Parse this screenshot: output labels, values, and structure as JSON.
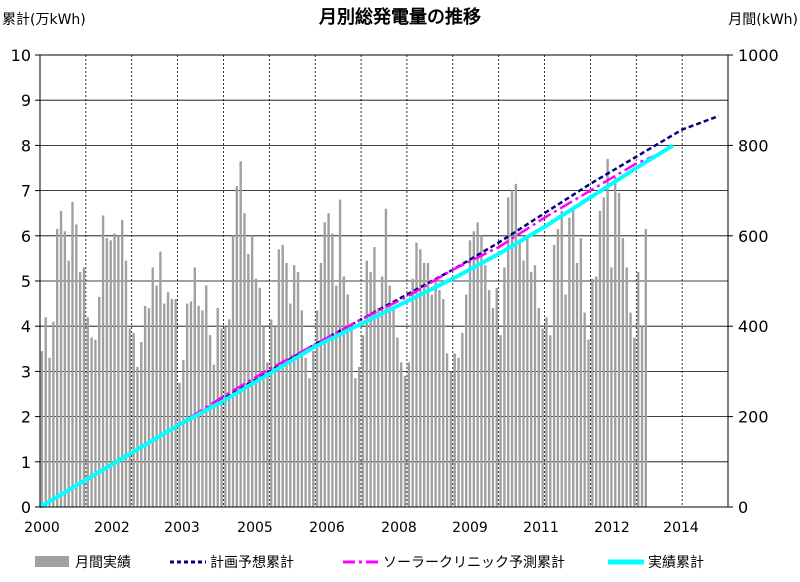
{
  "chart_data": {
    "type": "bar+line",
    "title": "月別総発電量の推移",
    "y_left_label": "累計(万kWh)",
    "y_right_label": "月間(kWh)",
    "ylim_left": [
      0,
      10
    ],
    "ylim_right": [
      0,
      1000
    ],
    "y_left_ticks": [
      "0",
      "1",
      "2",
      "3",
      "4",
      "5",
      "6",
      "7",
      "8",
      "9",
      "10"
    ],
    "y_right_ticks": [
      "0",
      "200",
      "400",
      "600",
      "800",
      "1000"
    ],
    "x_tick_labels": [
      "2000",
      "2002",
      "2003",
      "2005",
      "2006",
      "2008",
      "2009",
      "2011",
      "2012",
      "2014"
    ],
    "grid": true,
    "legend_position": "bottom",
    "legend": {
      "bar": "月間実績",
      "plan": "計画予想累計",
      "clinic": "ソーラークリニック予測累計",
      "actual": "実績累計"
    },
    "colors": {
      "bar": "#a0a0a0",
      "plan": "#000080",
      "clinic": "#ff00ff",
      "actual": "#00ffff"
    },
    "monthly_kwh": [
      345,
      420,
      330,
      410,
      615,
      655,
      610,
      545,
      675,
      625,
      520,
      530,
      420,
      375,
      370,
      465,
      645,
      595,
      590,
      605,
      600,
      635,
      545,
      395,
      385,
      310,
      365,
      445,
      440,
      530,
      490,
      565,
      450,
      475,
      460,
      460,
      275,
      325,
      450,
      455,
      530,
      445,
      435,
      490,
      380,
      315,
      440,
      395,
      400,
      415,
      600,
      710,
      765,
      650,
      560,
      600,
      505,
      485,
      400,
      320,
      415,
      400,
      570,
      580,
      540,
      450,
      535,
      520,
      435,
      330,
      285,
      345,
      435,
      540,
      630,
      650,
      605,
      490,
      680,
      510,
      470,
      390,
      285,
      310,
      380,
      545,
      520,
      575,
      440,
      510,
      660,
      490,
      440,
      375,
      320,
      290,
      320,
      505,
      585,
      570,
      540,
      540,
      470,
      500,
      480,
      460,
      340,
      300,
      340,
      330,
      385,
      470,
      590,
      610,
      630,
      600,
      535,
      480,
      440,
      485,
      380,
      530,
      685,
      700,
      715,
      590,
      545,
      600,
      520,
      535,
      440,
      395,
      420,
      380,
      580,
      615,
      655,
      470,
      640,
      660,
      540,
      595,
      430,
      370,
      505,
      510,
      655,
      685,
      770,
      530,
      730,
      695,
      595,
      530,
      430,
      375,
      520,
      400,
      615
    ],
    "actual_cumulative": {
      "x_year": [
        2000.0,
        2001.0,
        2002.0,
        2003.0,
        2004.0,
        2005.0,
        2006.0,
        2007.0,
        2008.0,
        2009.0,
        2010.0,
        2011.0,
        2012.0,
        2013.0,
        2013.8
      ],
      "y": [
        0,
        0.6,
        1.2,
        1.8,
        2.35,
        2.95,
        3.55,
        4.05,
        4.55,
        5.05,
        5.6,
        6.2,
        6.85,
        7.5,
        8.0
      ]
    },
    "plan_cumulative": {
      "x_year": [
        2000.0,
        2001.0,
        2002.0,
        2003.0,
        2004.0,
        2005.0,
        2006.0,
        2007.0,
        2008.0,
        2009.0,
        2010.0,
        2011.0,
        2012.0,
        2013.0,
        2014.0,
        2014.8
      ],
      "y": [
        0,
        0.6,
        1.2,
        1.8,
        2.4,
        3.0,
        3.6,
        4.15,
        4.7,
        5.25,
        5.85,
        6.5,
        7.15,
        7.75,
        8.35,
        8.65
      ]
    },
    "clinic_cumulative": {
      "x_year": [
        2000.0,
        2001.0,
        2002.0,
        2003.0,
        2004.0,
        2005.0,
        2006.0,
        2007.0,
        2008.0,
        2009.0,
        2010.0,
        2011.0,
        2012.0,
        2013.0,
        2013.6
      ],
      "y": [
        0,
        0.6,
        1.2,
        1.8,
        2.45,
        3.05,
        3.6,
        4.15,
        4.65,
        5.25,
        5.75,
        6.4,
        7.0,
        7.6,
        7.85
      ]
    }
  }
}
